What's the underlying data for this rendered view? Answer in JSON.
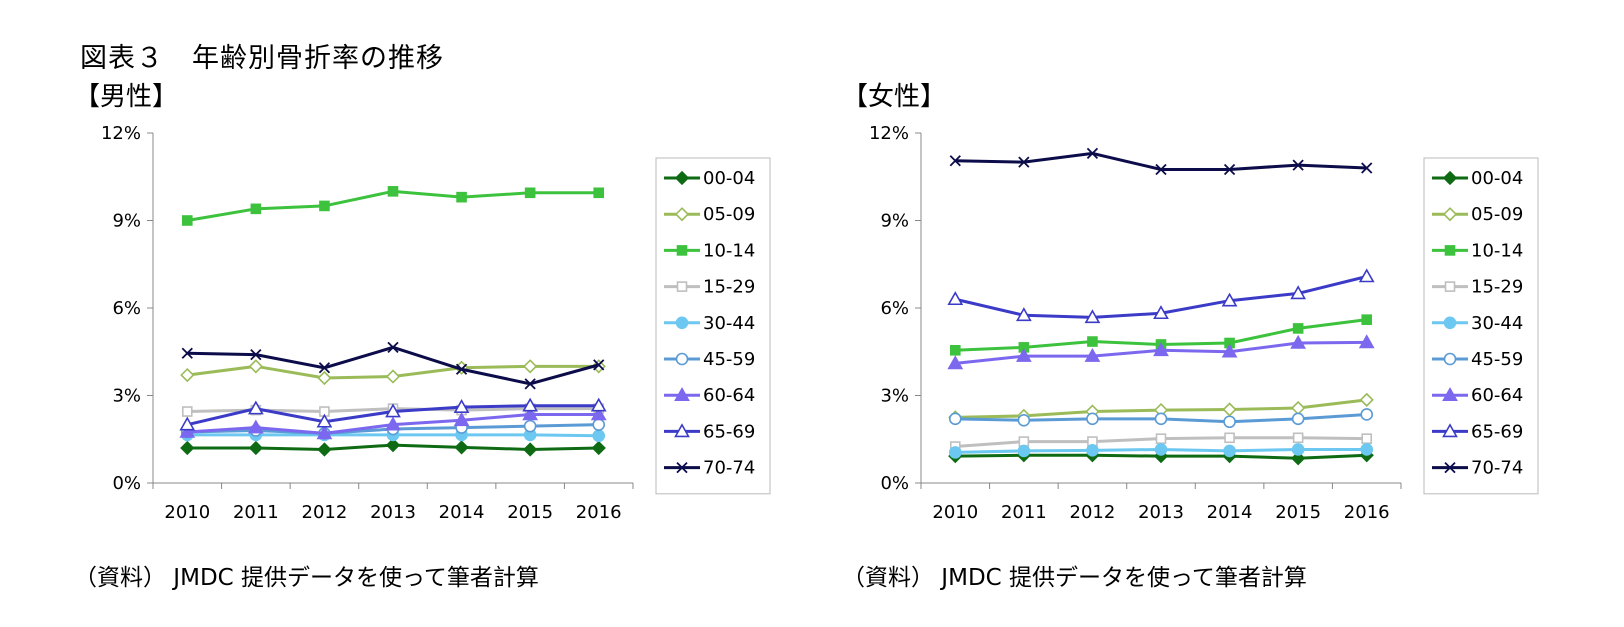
{
  "title": "図表３　年齢別骨折率の推移",
  "chart_data": [
    {
      "type": "line",
      "title": "【男性】",
      "source": "（資料） JMDC 提供データを使って筆者計算",
      "categories": [
        "2010",
        "2011",
        "2012",
        "2013",
        "2014",
        "2015",
        "2016"
      ],
      "ylim": [
        0,
        12
      ],
      "yticks": [
        0,
        3,
        6,
        9,
        12
      ],
      "ytick_labels": [
        "0%",
        "3%",
        "6%",
        "9%",
        "12%"
      ],
      "legend_position": "right",
      "series": [
        {
          "name": "00-04",
          "color": "#0e6b14",
          "marker": "diamond",
          "fill": true,
          "values": [
            1.2,
            1.2,
            1.15,
            1.3,
            1.22,
            1.15,
            1.2
          ]
        },
        {
          "name": "05-09",
          "color": "#9bbb59",
          "marker": "diamond",
          "fill": false,
          "values": [
            3.7,
            4.0,
            3.6,
            3.65,
            3.95,
            4.0,
            4.0
          ]
        },
        {
          "name": "10-14",
          "color": "#3dc23d",
          "marker": "square",
          "fill": true,
          "values": [
            9.0,
            9.4,
            9.5,
            10.0,
            9.8,
            9.95,
            9.95
          ]
        },
        {
          "name": "15-29",
          "color": "#bfbfbf",
          "marker": "square",
          "fill": false,
          "values": [
            2.45,
            2.5,
            2.45,
            2.55,
            2.5,
            2.55,
            2.55
          ]
        },
        {
          "name": "30-44",
          "color": "#6cc8f0",
          "marker": "circle",
          "fill": true,
          "values": [
            1.65,
            1.65,
            1.65,
            1.65,
            1.65,
            1.65,
            1.62
          ]
        },
        {
          "name": "45-59",
          "color": "#5b9bd5",
          "marker": "circle",
          "fill": false,
          "values": [
            1.75,
            1.8,
            1.7,
            1.85,
            1.9,
            1.95,
            2.0
          ]
        },
        {
          "name": "60-64",
          "color": "#7b68ee",
          "marker": "triangle",
          "fill": true,
          "values": [
            1.75,
            1.9,
            1.7,
            2.0,
            2.15,
            2.35,
            2.35
          ]
        },
        {
          "name": "65-69",
          "color": "#3b3bc8",
          "marker": "triangle",
          "fill": false,
          "values": [
            2.0,
            2.55,
            2.1,
            2.45,
            2.6,
            2.65,
            2.65
          ]
        },
        {
          "name": "70-74",
          "color": "#0c0c4a",
          "marker": "x",
          "fill": false,
          "values": [
            4.45,
            4.4,
            3.95,
            4.65,
            3.9,
            3.4,
            4.05
          ]
        }
      ]
    },
    {
      "type": "line",
      "title": "【女性】",
      "source": "（資料） JMDC 提供データを使って筆者計算",
      "categories": [
        "2010",
        "2011",
        "2012",
        "2013",
        "2014",
        "2015",
        "2016"
      ],
      "ylim": [
        0,
        12
      ],
      "yticks": [
        0,
        3,
        6,
        9,
        12
      ],
      "ytick_labels": [
        "0%",
        "3%",
        "6%",
        "9%",
        "12%"
      ],
      "legend_position": "right",
      "series": [
        {
          "name": "00-04",
          "color": "#0e6b14",
          "marker": "diamond",
          "fill": true,
          "values": [
            0.92,
            0.95,
            0.95,
            0.92,
            0.92,
            0.85,
            0.95
          ]
        },
        {
          "name": "05-09",
          "color": "#9bbb59",
          "marker": "diamond",
          "fill": false,
          "values": [
            2.25,
            2.3,
            2.45,
            2.5,
            2.52,
            2.57,
            2.85
          ]
        },
        {
          "name": "10-14",
          "color": "#3dc23d",
          "marker": "square",
          "fill": true,
          "values": [
            4.55,
            4.65,
            4.85,
            4.75,
            4.8,
            5.3,
            5.6
          ]
        },
        {
          "name": "15-29",
          "color": "#bfbfbf",
          "marker": "square",
          "fill": false,
          "values": [
            1.25,
            1.42,
            1.42,
            1.52,
            1.55,
            1.55,
            1.52
          ]
        },
        {
          "name": "30-44",
          "color": "#6cc8f0",
          "marker": "circle",
          "fill": true,
          "values": [
            1.05,
            1.1,
            1.12,
            1.15,
            1.1,
            1.15,
            1.15
          ]
        },
        {
          "name": "45-59",
          "color": "#5b9bd5",
          "marker": "circle",
          "fill": false,
          "values": [
            2.2,
            2.15,
            2.2,
            2.2,
            2.1,
            2.2,
            2.35
          ]
        },
        {
          "name": "60-64",
          "color": "#7b68ee",
          "marker": "triangle",
          "fill": true,
          "values": [
            4.1,
            4.35,
            4.35,
            4.55,
            4.5,
            4.8,
            4.82
          ]
        },
        {
          "name": "65-69",
          "color": "#3b3bc8",
          "marker": "triangle",
          "fill": false,
          "values": [
            6.3,
            5.75,
            5.68,
            5.82,
            6.25,
            6.5,
            7.08
          ]
        },
        {
          "name": "70-74",
          "color": "#0c0c4a",
          "marker": "x",
          "fill": false,
          "values": [
            11.05,
            11.0,
            11.3,
            10.75,
            10.75,
            10.9,
            10.8
          ]
        }
      ]
    }
  ]
}
